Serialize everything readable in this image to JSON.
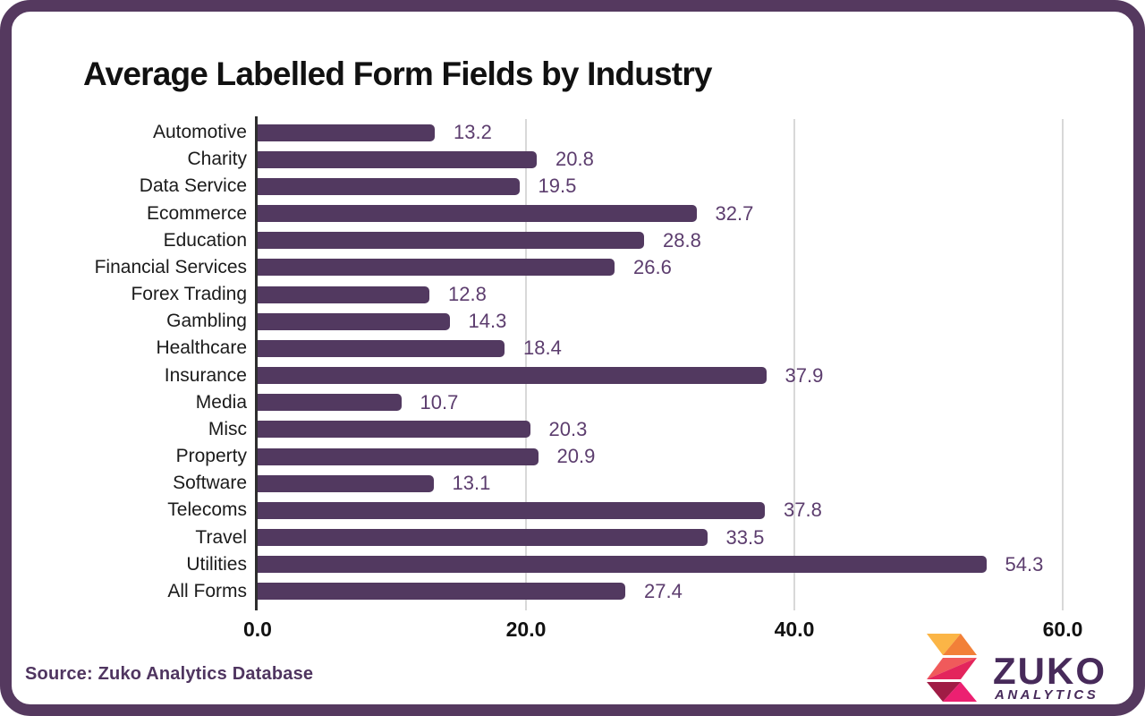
{
  "title": "Average Labelled Form Fields by Industry",
  "source_note": "Source: Zuko Analytics Database",
  "logo": {
    "brand": "ZUKO",
    "subtitle": "ANALYTICS"
  },
  "colors": {
    "frame": "#55395F",
    "bar": "#523960",
    "value_label": "#5C3D6E",
    "gridline": "#d8d8d8",
    "axis": "#2e2e2e",
    "logo_yellow": "#FBB546",
    "logo_orange": "#F28038",
    "logo_salmon": "#F05A5B",
    "logo_red": "#E3255C",
    "logo_crimson": "#A01C45",
    "logo_magenta": "#EC2071",
    "logo_purple": "#472A5A"
  },
  "chart_data": {
    "type": "bar",
    "orientation": "horizontal",
    "title": "Average Labelled Form Fields by Industry",
    "xlabel": "",
    "ylabel": "",
    "xlim": [
      0,
      60
    ],
    "grid": true,
    "x_ticks": [
      {
        "label": "0.0",
        "value": 0
      },
      {
        "label": "20.0",
        "value": 20
      },
      {
        "label": "40.0",
        "value": 40
      },
      {
        "label": "60.0",
        "value": 60
      }
    ],
    "categories": [
      "Automotive",
      "Charity",
      "Data Service",
      "Ecommerce",
      "Education",
      "Financial Services",
      "Forex Trading",
      "Gambling",
      "Healthcare",
      "Insurance",
      "Media",
      "Misc",
      "Property",
      "Software",
      "Telecoms",
      "Travel",
      "Utilities",
      "All Forms"
    ],
    "values": [
      13.2,
      20.8,
      19.5,
      32.7,
      28.8,
      26.6,
      12.8,
      14.3,
      18.4,
      37.9,
      10.7,
      20.3,
      20.9,
      13.1,
      37.8,
      33.5,
      54.3,
      27.4
    ]
  }
}
